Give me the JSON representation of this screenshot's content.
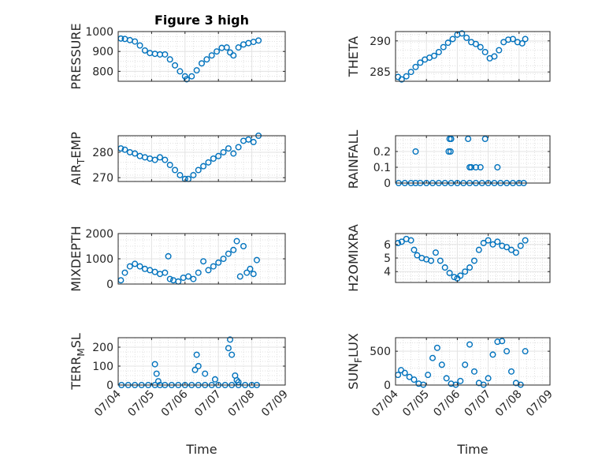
{
  "figure_title": "Figure 3 high",
  "colors": {
    "marker": "#0072BD",
    "axes": "#262626",
    "grid": "#d9d9d9"
  },
  "chart_data": [
    {
      "type": "scatter",
      "ylabel": "PRESSURE",
      "title": "Figure 3 high",
      "xlabel": "",
      "ylim": [
        750,
        1000
      ],
      "yticks": [
        800,
        900,
        1000
      ],
      "ytick_labels": [
        "800",
        "900",
        "1000"
      ],
      "xlim": [
        0,
        5
      ],
      "grid": true,
      "x": [
        0.08,
        0.2,
        0.35,
        0.5,
        0.65,
        0.8,
        0.95,
        1.1,
        1.25,
        1.4,
        1.55,
        1.7,
        1.85,
        2.0,
        2.05,
        2.2,
        2.35,
        2.5,
        2.65,
        2.8,
        2.95,
        3.1,
        3.25,
        3.35,
        3.45,
        3.6,
        3.75,
        3.9,
        4.05,
        4.2
      ],
      "y": [
        965,
        963,
        957,
        950,
        930,
        905,
        892,
        888,
        885,
        885,
        860,
        830,
        800,
        775,
        760,
        775,
        805,
        840,
        860,
        880,
        900,
        918,
        920,
        895,
        880,
        920,
        935,
        942,
        948,
        955
      ]
    },
    {
      "type": "scatter",
      "ylabel": "THETA",
      "title": "",
      "xlabel": "",
      "ylim": [
        283.5,
        291.5
      ],
      "yticks": [
        285,
        290
      ],
      "ytick_labels": [
        "285",
        "290"
      ],
      "xlim": [
        0,
        5
      ],
      "grid": true,
      "x": [
        0.08,
        0.2,
        0.35,
        0.5,
        0.65,
        0.8,
        0.95,
        1.1,
        1.25,
        1.4,
        1.55,
        1.7,
        1.85,
        2.0,
        2.15,
        2.3,
        2.45,
        2.6,
        2.75,
        2.9,
        3.05,
        3.2,
        3.35,
        3.5,
        3.65,
        3.8,
        3.95,
        4.1,
        4.2
      ],
      "y": [
        284.2,
        283.8,
        284.3,
        285.0,
        285.8,
        286.5,
        287.0,
        287.3,
        287.6,
        288.2,
        289.0,
        289.7,
        290.3,
        291.0,
        291.2,
        290.5,
        289.8,
        289.5,
        289.0,
        288.2,
        287.2,
        287.5,
        288.5,
        289.8,
        290.2,
        290.3,
        289.8,
        289.6,
        290.3
      ]
    },
    {
      "type": "scatter",
      "ylabel": "AIR_TEMP",
      "title": "",
      "xlabel": "",
      "ylim": [
        268.5,
        286.5
      ],
      "yticks": [
        270,
        280
      ],
      "ytick_labels": [
        "270",
        "280"
      ],
      "xlim": [
        0,
        5
      ],
      "grid": true,
      "x": [
        0.08,
        0.2,
        0.35,
        0.5,
        0.65,
        0.8,
        0.95,
        1.1,
        1.25,
        1.4,
        1.55,
        1.7,
        1.85,
        2.0,
        2.1,
        2.25,
        2.4,
        2.55,
        2.7,
        2.85,
        3.0,
        3.15,
        3.3,
        3.45,
        3.6,
        3.75,
        3.9,
        4.05,
        4.2
      ],
      "y": [
        281.5,
        281.0,
        280.0,
        279.5,
        278.5,
        278.0,
        277.5,
        277.0,
        278.0,
        277.0,
        275.0,
        273.0,
        271.0,
        269.5,
        269.5,
        271.0,
        273.0,
        274.5,
        276.0,
        277.5,
        278.5,
        280.0,
        281.5,
        279.5,
        282.0,
        284.5,
        285.0,
        284.0,
        286.5
      ]
    },
    {
      "type": "scatter",
      "ylabel": "RAINFALL",
      "title": "",
      "xlabel": "",
      "ylim": [
        0,
        0.3
      ],
      "yticks": [
        0,
        0.1,
        0.2
      ],
      "ytick_labels": [
        "0",
        "0.1",
        "0.2"
      ],
      "xlim": [
        0,
        5
      ],
      "grid": true,
      "x": [
        0.1,
        0.3,
        0.5,
        0.65,
        0.8,
        1.0,
        1.2,
        1.4,
        1.6,
        1.8,
        2.0,
        2.2,
        2.4,
        2.6,
        2.8,
        3.0,
        3.2,
        3.4,
        3.6,
        3.8,
        4.0,
        4.15,
        0.65,
        1.72,
        1.78,
        1.75,
        1.8,
        2.35,
        2.4,
        2.9,
        2.45,
        2.6,
        2.75,
        3.3
      ],
      "y": [
        0,
        0,
        0,
        0,
        0,
        0,
        0,
        0,
        0,
        0,
        0,
        0,
        0,
        0,
        0,
        0,
        0,
        0,
        0,
        0,
        0,
        0,
        0.2,
        0.2,
        0.2,
        0.28,
        0.28,
        0.28,
        0.1,
        0.28,
        0.1,
        0.1,
        0.1,
        0.1
      ]
    },
    {
      "type": "scatter",
      "ylabel": "MIXDEPTH",
      "title": "",
      "xlabel": "",
      "ylim": [
        0,
        2000
      ],
      "yticks": [
        0,
        1000,
        2000
      ],
      "ytick_labels": [
        "0",
        "1000",
        "2000"
      ],
      "xlim": [
        0,
        5
      ],
      "grid": true,
      "x": [
        0.08,
        0.2,
        0.35,
        0.5,
        0.65,
        0.8,
        0.95,
        1.1,
        1.25,
        1.4,
        1.5,
        1.55,
        1.65,
        1.8,
        1.95,
        2.1,
        2.25,
        2.4,
        2.55,
        2.7,
        2.85,
        3.0,
        3.15,
        3.3,
        3.45,
        3.55,
        3.65,
        3.75,
        3.85,
        3.95,
        4.05,
        4.15
      ],
      "y": [
        150,
        450,
        700,
        800,
        700,
        600,
        550,
        480,
        400,
        450,
        1100,
        200,
        150,
        100,
        250,
        300,
        200,
        450,
        900,
        550,
        700,
        850,
        1000,
        1200,
        1350,
        1700,
        300,
        1500,
        450,
        600,
        400,
        950
      ]
    },
    {
      "type": "scatter",
      "ylabel": "H2OMIXRA",
      "title": "",
      "xlabel": "",
      "ylim": [
        3.2,
        6.8
      ],
      "yticks": [
        4,
        5,
        6
      ],
      "ytick_labels": [
        "4",
        "5",
        "6"
      ],
      "xlim": [
        0,
        5
      ],
      "grid": true,
      "x": [
        0.08,
        0.2,
        0.35,
        0.5,
        0.6,
        0.7,
        0.85,
        1.0,
        1.15,
        1.3,
        1.45,
        1.6,
        1.75,
        1.9,
        2.0,
        2.1,
        2.25,
        2.4,
        2.55,
        2.7,
        2.85,
        3.0,
        3.15,
        3.3,
        3.45,
        3.6,
        3.75,
        3.9,
        4.05,
        4.2
      ],
      "y": [
        6.1,
        6.2,
        6.4,
        6.3,
        5.6,
        5.2,
        5.0,
        4.9,
        4.8,
        5.4,
        4.8,
        4.3,
        3.9,
        3.6,
        3.5,
        3.7,
        4.0,
        4.3,
        4.8,
        5.6,
        6.1,
        6.3,
        6.0,
        6.2,
        5.9,
        5.8,
        5.6,
        5.4,
        5.9,
        6.3
      ]
    },
    {
      "type": "scatter",
      "ylabel": "TERR_MSL",
      "title": "",
      "xlabel": "Time",
      "ylim": [
        0,
        250
      ],
      "yticks": [
        0,
        100,
        200
      ],
      "ytick_labels": [
        "0",
        "100",
        "200"
      ],
      "xlim": [
        0,
        5
      ],
      "xticks": [
        0,
        1,
        2,
        3,
        4,
        5
      ],
      "xtick_labels": [
        "07/04",
        "07/05",
        "07/06",
        "07/07",
        "07/08",
        "07/09"
      ],
      "grid": true,
      "x": [
        0.1,
        0.3,
        0.5,
        0.7,
        0.9,
        1.1,
        1.25,
        1.4,
        1.6,
        1.8,
        2.0,
        2.2,
        2.4,
        2.6,
        2.8,
        3.0,
        3.2,
        3.4,
        3.6,
        3.8,
        4.0,
        4.15,
        1.1,
        1.15,
        1.2,
        2.3,
        2.35,
        2.4,
        2.6,
        2.9,
        3.3,
        3.35,
        3.4,
        3.5,
        3.55,
        3.6
      ],
      "y": [
        0,
        0,
        0,
        0,
        0,
        0,
        0,
        0,
        0,
        0,
        0,
        0,
        0,
        0,
        0,
        0,
        0,
        0,
        0,
        0,
        0,
        0,
        110,
        60,
        20,
        80,
        160,
        100,
        60,
        30,
        195,
        240,
        160,
        50,
        25,
        15
      ]
    },
    {
      "type": "scatter",
      "ylabel": "SUN_FLUX",
      "title": "",
      "xlabel": "Time",
      "ylim": [
        0,
        700
      ],
      "yticks": [
        0,
        500
      ],
      "ytick_labels": [
        "0",
        "500"
      ],
      "xlim": [
        0,
        5
      ],
      "xticks": [
        0,
        1,
        2,
        3,
        4,
        5
      ],
      "xtick_labels": [
        "07/04",
        "07/05",
        "07/06",
        "07/07",
        "07/08",
        "07/09"
      ],
      "grid": true,
      "x": [
        0.08,
        0.18,
        0.3,
        0.45,
        0.6,
        0.75,
        0.9,
        1.05,
        1.2,
        1.35,
        1.5,
        1.65,
        1.8,
        1.95,
        2.1,
        2.25,
        2.4,
        2.55,
        2.7,
        2.85,
        3.0,
        3.15,
        3.3,
        3.45,
        3.6,
        3.75,
        3.9,
        4.05,
        4.2
      ],
      "y": [
        150,
        220,
        180,
        120,
        80,
        20,
        5,
        150,
        400,
        550,
        300,
        100,
        20,
        5,
        60,
        300,
        600,
        200,
        30,
        5,
        100,
        450,
        640,
        650,
        500,
        200,
        30,
        5,
        500
      ]
    }
  ]
}
